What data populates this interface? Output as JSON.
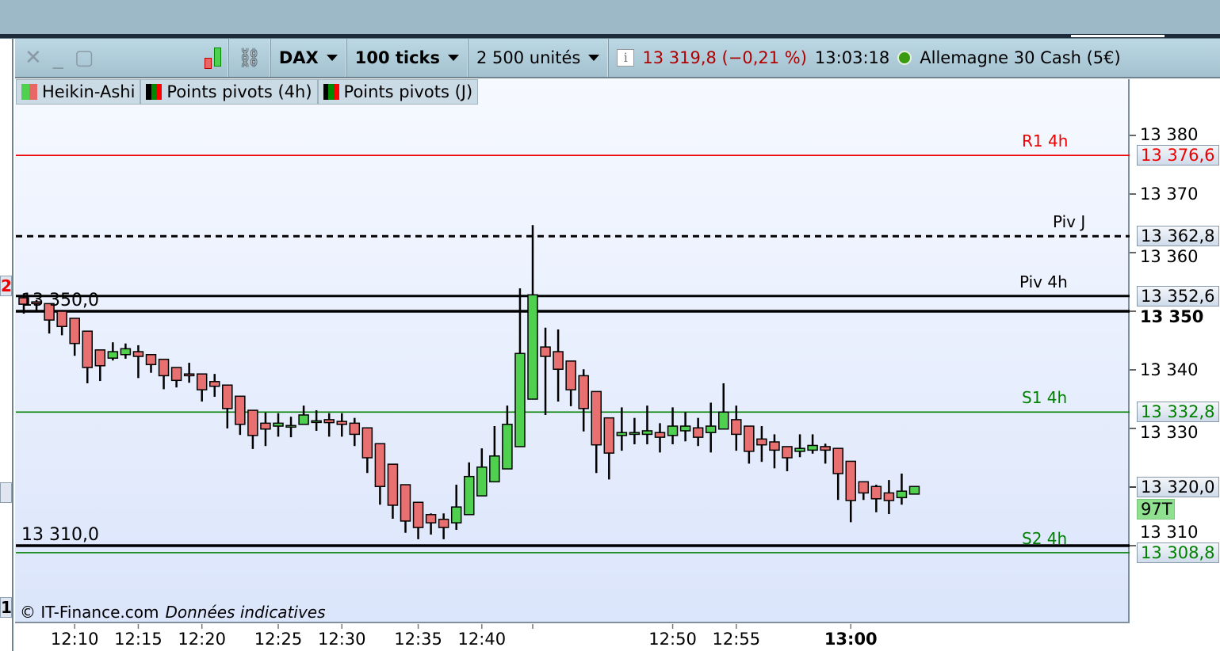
{
  "toolbar": {
    "close_icon": "close-icon",
    "minimize_icon": "minimize-icon",
    "maximize_icon": "maximize-icon",
    "chart_type_icon": "candlestick-icon",
    "link_icon": "chain-link-icon",
    "instrument": "DAX",
    "interval": "100 ticks",
    "quantity": "2 500 unités",
    "info_icon": "info-icon",
    "price": "13 319,8 (−0,21 %)",
    "time": "13:03:18",
    "status_color": "#3a9a10",
    "instrument_name": "Allemagne 30 Cash (5€)"
  },
  "legend": [
    {
      "label": "Heikin-Ashi",
      "colors": [
        "#4fd14f",
        "#e86666"
      ]
    },
    {
      "label": "Points pivots (4h)",
      "colors": [
        "#000000",
        "#008000",
        "#ff0000"
      ]
    },
    {
      "label": "Points pivots (J)",
      "colors": [
        "#000000",
        "#008000",
        "#ff0000"
      ]
    }
  ],
  "left_edge": {
    "top": "2",
    "bottom": "1"
  },
  "levels": [
    {
      "name": "R1 4h",
      "value": 13376.6,
      "value_label": "13 376,6",
      "color": "#ee0000",
      "style": "solid"
    },
    {
      "name": "Piv J",
      "value": 13362.8,
      "value_label": "13 362,8",
      "color": "#000000",
      "style": "dashed"
    },
    {
      "name": "Piv 4h",
      "value": 13352.6,
      "value_label": "13 352,6",
      "color": "#000000",
      "style": "solid"
    },
    {
      "name": "S1 4h",
      "value": 13332.8,
      "value_label": "13 332,8",
      "color": "#008000",
      "style": "solid"
    },
    {
      "name": "S2 4h",
      "value": 13308.8,
      "value_label": "13 308,8",
      "color": "#008000",
      "style": "solid"
    }
  ],
  "drawn_lines": [
    {
      "label": "13 350,0",
      "value": 13350.0
    },
    {
      "label": "13 310,0",
      "value": 13310.0
    }
  ],
  "current_price": {
    "label": "13 320,0",
    "value": 13320.0,
    "ticks_label": "97T"
  },
  "copyright": "© IT-Finance.com",
  "disclaimer": "Données indicatives",
  "chart_data": {
    "type": "candlestick",
    "style": "Heikin-Ashi",
    "up_color": "#4fd14f",
    "down_color": "#e87070",
    "ylim": [
      13300.5,
      13389
    ],
    "y_ticks": [
      {
        "v": 13380,
        "label": "13 380"
      },
      {
        "v": 13370,
        "label": "13 370"
      },
      {
        "v": 13360,
        "label": "13 360"
      },
      {
        "v": 13350,
        "label": "13 350",
        "bold": true
      },
      {
        "v": 13340,
        "label": "13 340"
      },
      {
        "v": 13330,
        "label": "13 330"
      },
      {
        "v": 13310,
        "label": "13 310"
      }
    ],
    "x_ticks": [
      {
        "i": 4,
        "label": "12:10"
      },
      {
        "i": 9,
        "label": "12:15"
      },
      {
        "i": 14,
        "label": "12:20"
      },
      {
        "i": 20,
        "label": "12:25"
      },
      {
        "i": 25,
        "label": "12:30"
      },
      {
        "i": 31,
        "label": "12:35"
      },
      {
        "i": 36,
        "label": "12:40"
      },
      {
        "i": 40,
        "label": ""
      },
      {
        "i": 51,
        "label": "12:50"
      },
      {
        "i": 56,
        "label": "12:55"
      },
      {
        "i": 65,
        "label": "13:00",
        "bold": true
      }
    ],
    "ohlc": [
      [
        13352.3,
        13353.0,
        13349.6,
        13351.2
      ],
      [
        13351.6,
        13351.9,
        13350.1,
        13351.3
      ],
      [
        13351.3,
        13351.3,
        13346.2,
        13348.5
      ],
      [
        13350.0,
        13350.1,
        13345.9,
        13347.4
      ],
      [
        13348.8,
        13348.8,
        13342.4,
        13344.5
      ],
      [
        13346.6,
        13346.6,
        13337.7,
        13340.4
      ],
      [
        13343.4,
        13343.4,
        13338.1,
        13340.7
      ],
      [
        13342.0,
        13344.7,
        13341.6,
        13343.1
      ],
      [
        13342.6,
        13344.5,
        13341.9,
        13343.6
      ],
      [
        13343.1,
        13344.2,
        13338.6,
        13342.3
      ],
      [
        13342.6,
        13342.6,
        13339.5,
        13340.9
      ],
      [
        13341.8,
        13341.8,
        13336.7,
        13339.0
      ],
      [
        13340.4,
        13340.4,
        13337.0,
        13338.2
      ],
      [
        13339.3,
        13341.2,
        13337.8,
        13339.0
      ],
      [
        13339.3,
        13339.3,
        13334.6,
        13336.6
      ],
      [
        13338.0,
        13339.3,
        13335.4,
        13337.2
      ],
      [
        13337.4,
        13337.4,
        13330.0,
        13333.4
      ],
      [
        13335.5,
        13335.5,
        13328.9,
        13330.7
      ],
      [
        13333.1,
        13333.1,
        13326.5,
        13328.8
      ],
      [
        13330.9,
        13332.7,
        13327.0,
        13329.9
      ],
      [
        13330.4,
        13332.6,
        13328.6,
        13330.9
      ],
      [
        13330.5,
        13332.0,
        13328.5,
        13330.5
      ],
      [
        13330.7,
        13333.9,
        13330.7,
        13332.3
      ],
      [
        13331.3,
        13333.1,
        13329.6,
        13331.3
      ],
      [
        13331.5,
        13332.6,
        13328.6,
        13331.0
      ],
      [
        13331.2,
        13332.6,
        13328.6,
        13330.7
      ],
      [
        13330.9,
        13331.8,
        13327.0,
        13329.0
      ],
      [
        13330.1,
        13330.1,
        13322.4,
        13325.0
      ],
      [
        13327.4,
        13327.4,
        13317.0,
        13320.1
      ],
      [
        13323.9,
        13323.9,
        13314.6,
        13316.9
      ],
      [
        13320.4,
        13320.4,
        13312.2,
        13314.2
      ],
      [
        13317.4,
        13317.4,
        13311.1,
        13313.1
      ],
      [
        13315.3,
        13315.5,
        13311.9,
        13313.9
      ],
      [
        13314.5,
        13315.5,
        13311.1,
        13313.1
      ],
      [
        13313.9,
        13320.4,
        13312.7,
        13316.6
      ],
      [
        13315.3,
        13324.2,
        13315.3,
        13321.8
      ],
      [
        13318.5,
        13326.6,
        13318.5,
        13323.4
      ],
      [
        13320.9,
        13330.4,
        13320.9,
        13325.3
      ],
      [
        13323.1,
        13333.9,
        13323.1,
        13330.7
      ],
      [
        13326.9,
        13353.9,
        13326.9,
        13342.8
      ],
      [
        13335.0,
        13364.7,
        13335.0,
        13352.8
      ],
      [
        13343.9,
        13347.2,
        13332.3,
        13342.3
      ],
      [
        13343.1,
        13346.9,
        13334.6,
        13340.1
      ],
      [
        13341.5,
        13341.5,
        13333.8,
        13336.6
      ],
      [
        13339.0,
        13340.1,
        13329.5,
        13333.4
      ],
      [
        13336.3,
        13336.3,
        13322.4,
        13327.2
      ],
      [
        13331.8,
        13331.8,
        13321.3,
        13325.8
      ],
      [
        13328.8,
        13333.6,
        13326.2,
        13329.3
      ],
      [
        13329.0,
        13331.8,
        13327.3,
        13329.3
      ],
      [
        13329.0,
        13333.9,
        13327.3,
        13329.6
      ],
      [
        13329.3,
        13330.9,
        13325.9,
        13328.5
      ],
      [
        13328.8,
        13333.6,
        13327.3,
        13330.4
      ],
      [
        13329.6,
        13332.8,
        13327.8,
        13330.4
      ],
      [
        13330.1,
        13331.8,
        13327.0,
        13328.5
      ],
      [
        13329.3,
        13334.4,
        13325.9,
        13330.4
      ],
      [
        13329.9,
        13337.7,
        13329.9,
        13332.8
      ],
      [
        13331.5,
        13333.9,
        13326.2,
        13329.0
      ],
      [
        13330.4,
        13330.4,
        13324.0,
        13326.1
      ],
      [
        13328.2,
        13330.4,
        13324.3,
        13327.2
      ],
      [
        13327.7,
        13329.0,
        13323.2,
        13326.3
      ],
      [
        13326.9,
        13326.9,
        13322.7,
        13325.0
      ],
      [
        13326.1,
        13329.0,
        13325.1,
        13326.6
      ],
      [
        13326.3,
        13329.0,
        13325.7,
        13327.1
      ],
      [
        13326.9,
        13327.4,
        13324.0,
        13326.3
      ],
      [
        13326.6,
        13326.6,
        13317.8,
        13322.3
      ],
      [
        13324.4,
        13324.4,
        13314.0,
        13317.7
      ],
      [
        13320.9,
        13320.9,
        13317.8,
        13319.0
      ],
      [
        13320.1,
        13320.4,
        13315.7,
        13318.0
      ],
      [
        13319.0,
        13321.2,
        13315.4,
        13317.7
      ],
      [
        13318.2,
        13322.3,
        13317.0,
        13319.3
      ],
      [
        13318.8,
        13320.1,
        13318.8,
        13320.1
      ]
    ]
  }
}
